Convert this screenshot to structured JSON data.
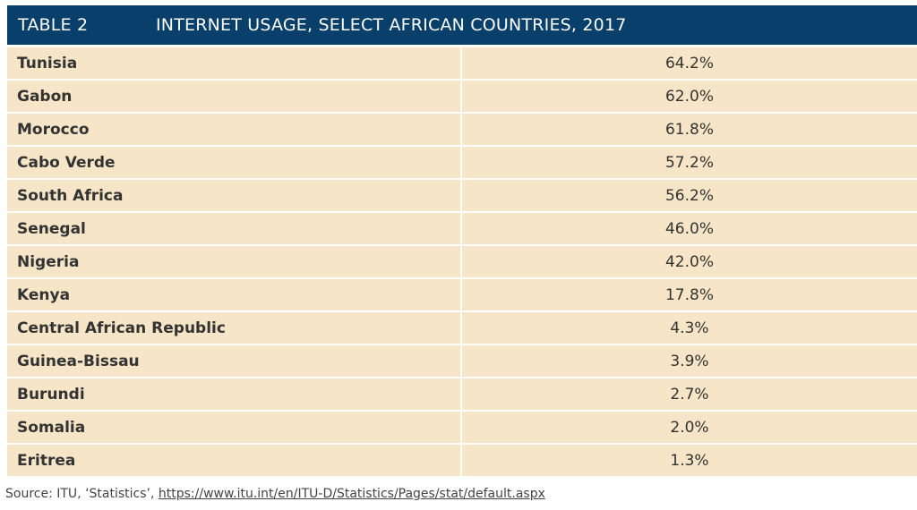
{
  "header": {
    "label": "TABLE 2",
    "title": "INTERNET USAGE, SELECT AFRICAN COUNTRIES, 2017"
  },
  "rows": [
    {
      "country": "Tunisia",
      "value": "64.2%"
    },
    {
      "country": "Gabon",
      "value": "62.0%"
    },
    {
      "country": "Morocco",
      "value": "61.8%"
    },
    {
      "country": "Cabo Verde",
      "value": "57.2%"
    },
    {
      "country": "South Africa",
      "value": "56.2%"
    },
    {
      "country": "Senegal",
      "value": "46.0%"
    },
    {
      "country": "Nigeria",
      "value": "42.0%"
    },
    {
      "country": "Kenya",
      "value": "17.8%"
    },
    {
      "country": "Central African Republic",
      "value": "4.3%"
    },
    {
      "country": "Guinea-Bissau",
      "value": "3.9%"
    },
    {
      "country": "Burundi",
      "value": "2.7%"
    },
    {
      "country": "Somalia",
      "value": "2.0%"
    },
    {
      "country": "Eritrea",
      "value": "1.3%"
    }
  ],
  "source": {
    "prefix": "Source: ITU, ‘Statistics’, ",
    "link_text": "https://www.itu.int/en/ITU-D/Statistics/Pages/stat/default.aspx"
  },
  "colors": {
    "header_bg": "#083f6b",
    "row_bg": "#f6e5c6"
  }
}
